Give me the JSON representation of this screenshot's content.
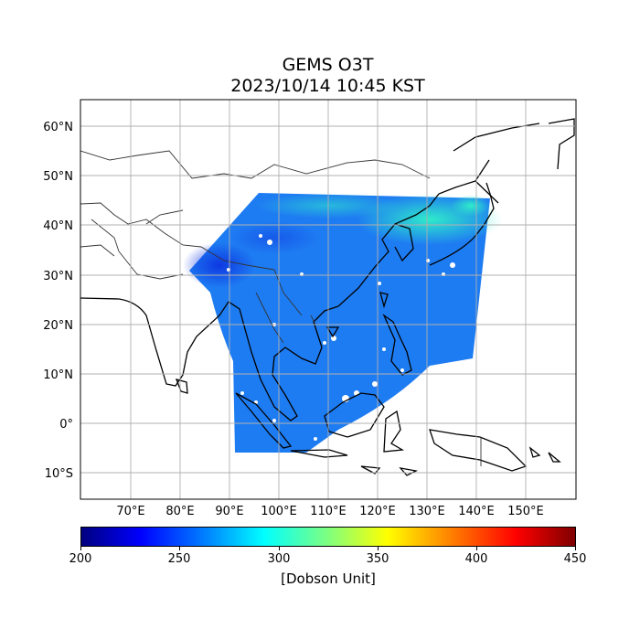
{
  "title": {
    "line1": "GEMS O3T",
    "line2": "2023/10/14 10:45 KST"
  },
  "map": {
    "lat_labels": [
      "60°N",
      "50°N",
      "40°N",
      "30°N",
      "20°N",
      "10°N",
      "0°",
      "10°S"
    ],
    "lon_labels": [
      "70°E",
      "80°E",
      "90°E",
      "100°E",
      "110°E",
      "120°E",
      "130°E",
      "140°E",
      "150°E"
    ],
    "lon_range": [
      60,
      160
    ],
    "lat_range": [
      -15,
      65
    ],
    "gridlines": true,
    "field_colors": {
      "base": "#1e78f0",
      "high": "#2ee8c8",
      "low": "#1040e0"
    }
  },
  "colorbar": {
    "ticks": [
      "200",
      "250",
      "300",
      "350",
      "400",
      "450"
    ],
    "unit": "[Dobson Unit]",
    "colormap": "jet"
  }
}
